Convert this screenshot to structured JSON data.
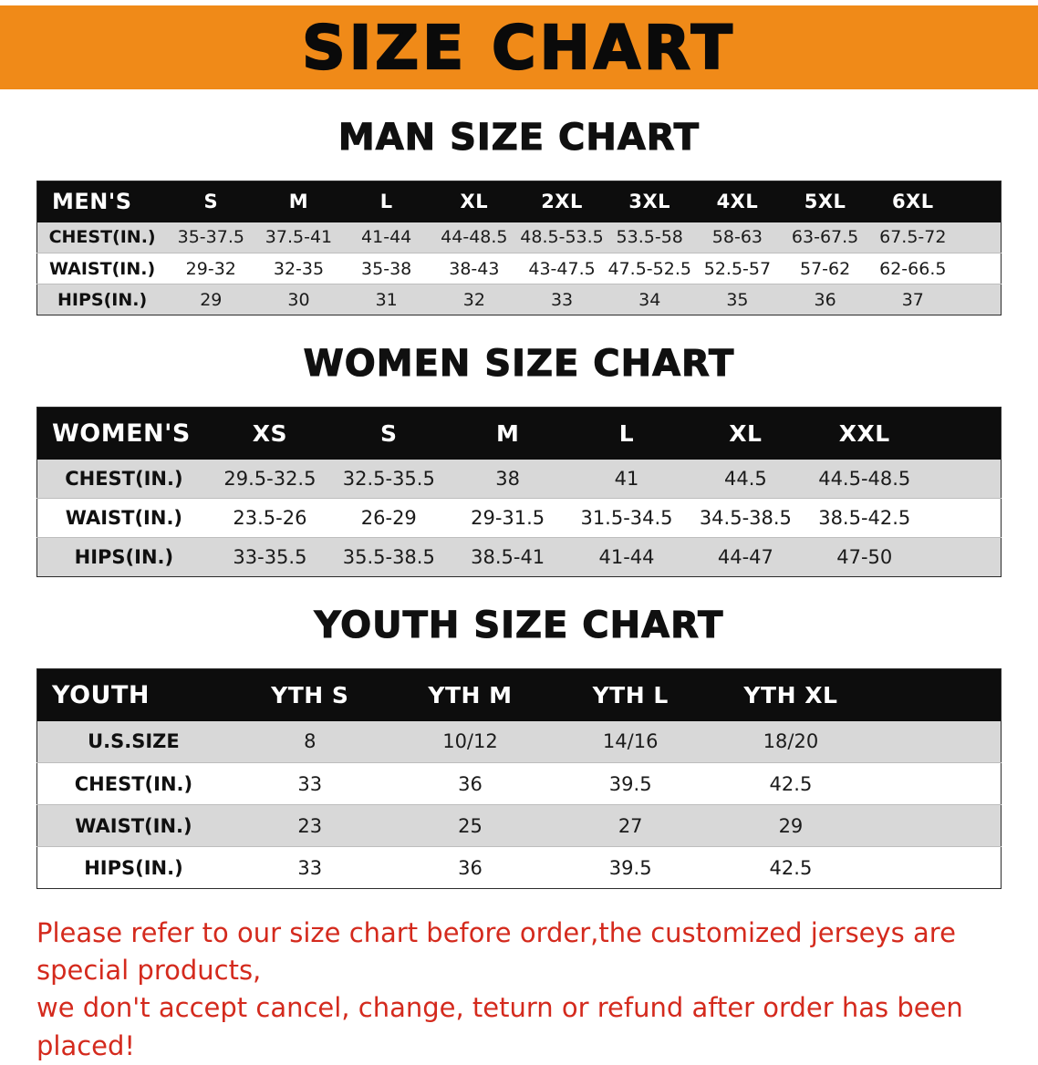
{
  "banner": {
    "title": "SIZE CHART"
  },
  "chart_data": [
    {
      "type": "table",
      "title": "MAN SIZE CHART",
      "header": [
        "MEN'S",
        "S",
        "M",
        "L",
        "XL",
        "2XL",
        "3XL",
        "4XL",
        "5XL",
        "6XL"
      ],
      "rows": [
        [
          "CHEST(IN.)",
          "35-37.5",
          "37.5-41",
          "41-44",
          "44-48.5",
          "48.5-53.5",
          "53.5-58",
          "58-63",
          "63-67.5",
          "67.5-72"
        ],
        [
          "WAIST(IN.)",
          "29-32",
          "32-35",
          "35-38",
          "38-43",
          "43-47.5",
          "47.5-52.5",
          "52.5-57",
          "57-62",
          "62-66.5"
        ],
        [
          "HIPS(IN.)",
          "29",
          "30",
          "31",
          "32",
          "33",
          "34",
          "35",
          "36",
          "37"
        ]
      ]
    },
    {
      "type": "table",
      "title": "WOMEN SIZE CHART",
      "header": [
        "WOMEN'S",
        "XS",
        "S",
        "M",
        "L",
        "XL",
        "XXL"
      ],
      "rows": [
        [
          "CHEST(IN.)",
          "29.5-32.5",
          "32.5-35.5",
          "38",
          "41",
          "44.5",
          "44.5-48.5"
        ],
        [
          "WAIST(IN.)",
          "23.5-26",
          "26-29",
          "29-31.5",
          "31.5-34.5",
          "34.5-38.5",
          "38.5-42.5"
        ],
        [
          "HIPS(IN.)",
          "33-35.5",
          "35.5-38.5",
          "38.5-41",
          "41-44",
          "44-47",
          "47-50"
        ]
      ]
    },
    {
      "type": "table",
      "title": "YOUTH SIZE CHART",
      "header": [
        "YOUTH",
        "YTH S",
        "YTH M",
        "YTH L",
        "YTH XL"
      ],
      "rows": [
        [
          "U.S.SIZE",
          "8",
          "10/12",
          "14/16",
          "18/20"
        ],
        [
          "CHEST(IN.)",
          "33",
          "36",
          "39.5",
          "42.5"
        ],
        [
          "WAIST(IN.)",
          "23",
          "25",
          "27",
          "29"
        ],
        [
          "HIPS(IN.)",
          "33",
          "36",
          "39.5",
          "42.5"
        ]
      ]
    }
  ],
  "footer": {
    "line1": "Please refer to our size chart before order,the customized jerseys are special products,",
    "line2": "we don't accept cancel, change, teturn or refund after order has been placed!"
  },
  "colors": {
    "banner_bg": "#F08A18",
    "banner_text": "#0A0A0A",
    "table_header_bg": "#0D0D0D",
    "table_header_text": "#FFFFFF",
    "row_alt": "#D8D8D8",
    "disclaimer_text": "#D42A1D"
  }
}
